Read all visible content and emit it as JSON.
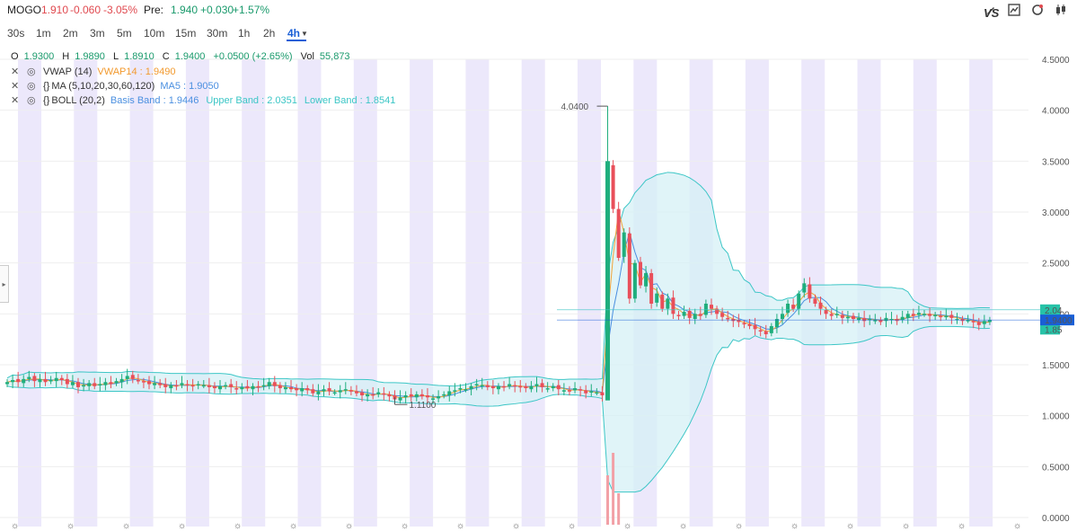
{
  "header": {
    "symbol": "MOGO",
    "price": "1.910",
    "change": "-0.060",
    "change_pct": "-3.05%",
    "pre_label": "Pre:",
    "pre_price": "1.940",
    "pre_change": "+0.030",
    "pre_change_pct": "+1.57%",
    "brand": "VS"
  },
  "timeframes": [
    "30s",
    "1m",
    "2m",
    "3m",
    "5m",
    "10m",
    "15m",
    "30m",
    "1h",
    "2h",
    "4h"
  ],
  "active_timeframe": "4h",
  "ohlc": {
    "o_label": "O",
    "o": "1.9300",
    "h_label": "H",
    "h": "1.9890",
    "l_label": "L",
    "l": "1.8910",
    "c_label": "C",
    "c": "1.9400",
    "chg": "+0.0500 (+2.65%)",
    "vol_label": "Vol",
    "vol": "55,873"
  },
  "indicators": {
    "vwap": {
      "name": "VWAP (14)",
      "value": "VWAP14 : 1.9490"
    },
    "ma": {
      "name": "MA (5,10,20,30,60,120)",
      "value": "MA5 : 1.9050"
    },
    "boll": {
      "name": "BOLL (20,2)",
      "basis": "Basis Band : 1.9446",
      "upper": "Upper Band : 2.0351",
      "lower": "Lower Band : 1.8541"
    }
  },
  "colors": {
    "up": "#1fae7d",
    "down": "#e94f5a",
    "vwap": "#f2a437",
    "ma": "#4a8fe0",
    "band": "#3cc6c6",
    "band_fill": "#d6f0f6",
    "session": "#ece8fb"
  },
  "chart_data": {
    "type": "candlestick",
    "y_ticks": [
      "0.0000",
      "0.5000",
      "1.0000",
      "1.5000",
      "2.0000",
      "2.5000",
      "3.0000",
      "3.5000",
      "4.0000",
      "4.5000"
    ],
    "ylim": [
      0,
      4.5
    ],
    "annotations": {
      "high": "4.0400",
      "low": "1.1100"
    },
    "price_tags": {
      "upper": "2.04",
      "last": "1.9400",
      "lower": "1.85"
    },
    "closes": [
      1.33,
      1.35,
      1.33,
      1.36,
      1.38,
      1.34,
      1.36,
      1.33,
      1.35,
      1.37,
      1.35,
      1.31,
      1.33,
      1.28,
      1.3,
      1.32,
      1.29,
      1.31,
      1.33,
      1.31,
      1.34,
      1.36,
      1.39,
      1.36,
      1.34,
      1.33,
      1.31,
      1.32,
      1.3,
      1.28,
      1.3,
      1.29,
      1.32,
      1.3,
      1.29,
      1.31,
      1.3,
      1.28,
      1.27,
      1.29,
      1.3,
      1.28,
      1.26,
      1.28,
      1.27,
      1.29,
      1.28,
      1.3,
      1.33,
      1.29,
      1.27,
      1.28,
      1.26,
      1.25,
      1.27,
      1.25,
      1.22,
      1.24,
      1.26,
      1.24,
      1.23,
      1.25,
      1.26,
      1.24,
      1.22,
      1.2,
      1.21,
      1.2,
      1.23,
      1.21,
      1.19,
      1.16,
      1.18,
      1.2,
      1.19,
      1.21,
      1.19,
      1.18,
      1.17,
      1.19,
      1.21,
      1.24,
      1.25,
      1.27,
      1.26,
      1.29,
      1.31,
      1.3,
      1.28,
      1.27,
      1.29,
      1.28,
      1.31,
      1.29,
      1.28,
      1.27,
      1.29,
      1.31,
      1.28,
      1.27,
      1.29,
      1.26,
      1.25,
      1.24,
      1.27,
      1.25,
      1.22,
      1.24,
      1.23,
      1.2,
      3.47,
      3.03,
      2.55,
      2.8,
      2.15,
      2.5,
      2.28,
      2.4,
      2.1,
      2.2,
      2.05,
      2.15,
      2.0,
      1.98,
      2.02,
      1.96,
      2.0,
      1.98,
      2.1,
      2.05,
      2.0,
      1.97,
      1.95,
      1.93,
      1.92,
      1.9,
      1.88,
      1.85,
      1.83,
      1.8,
      1.88,
      1.95,
      2.0,
      2.1,
      2.05,
      2.2,
      2.3,
      2.15,
      2.1,
      2.05,
      2.0,
      1.98,
      2.0,
      1.96,
      1.97,
      1.95,
      1.96,
      1.93,
      1.95,
      1.94,
      1.92,
      1.96,
      1.95,
      1.93,
      1.97,
      2.0,
      1.98,
      2.01,
      2.0,
      1.98,
      1.99,
      1.97,
      1.98,
      1.96,
      1.95,
      1.93,
      1.94,
      1.92,
      1.89,
      1.93,
      1.94
    ],
    "volume_spikes": [
      {
        "index": 110,
        "value": 0.55
      },
      {
        "index": 111,
        "value": 0.8
      },
      {
        "index": 112,
        "value": 0.35
      }
    ],
    "vwap_series_note": "",
    "bands": {
      "upper_peak": 3.16,
      "lower_trough": 0.27
    }
  }
}
